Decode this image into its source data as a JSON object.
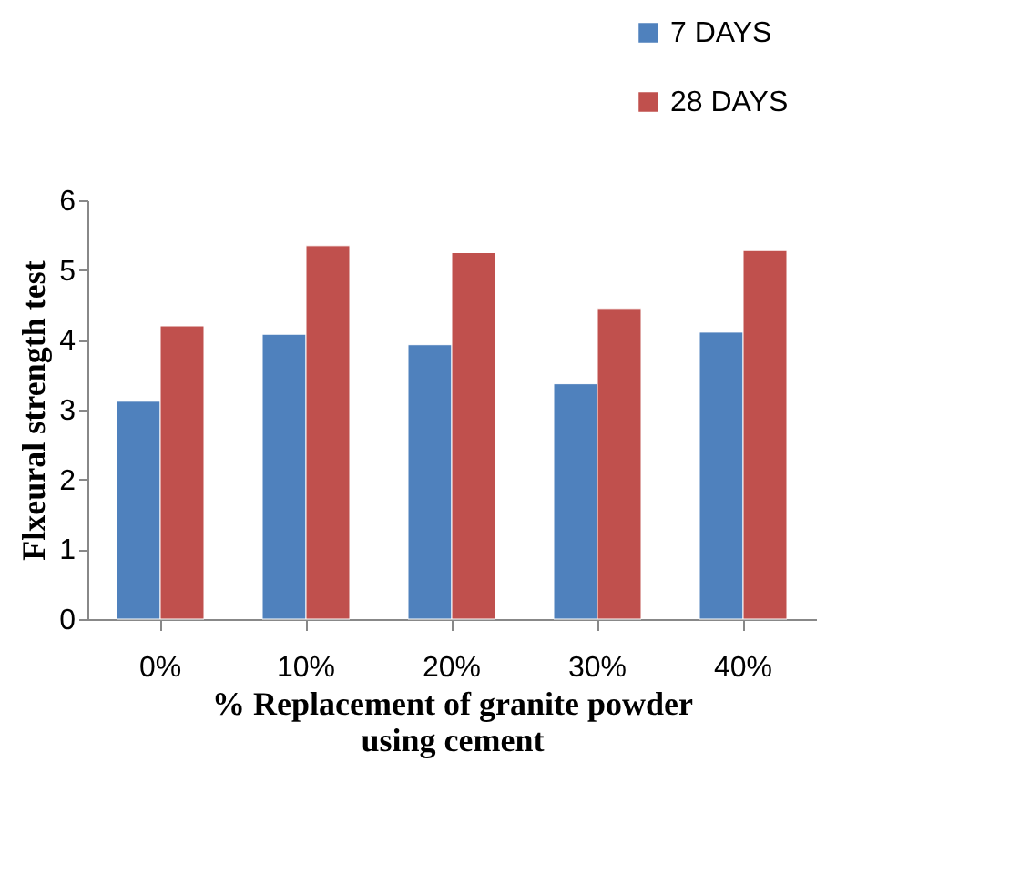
{
  "chart_data": {
    "type": "bar",
    "xlabel": "% Replacement of granite powder using cement",
    "ylabel": "Flxeural strength test",
    "categories": [
      "0%",
      "10%",
      "20%",
      "30%",
      "40%"
    ],
    "series": [
      {
        "name": "7 DAYS",
        "color": "#4f81bd",
        "values": [
          3.12,
          4.08,
          3.93,
          3.37,
          4.11
        ]
      },
      {
        "name": "28 DAYS",
        "color": "#c0504d",
        "values": [
          4.2,
          5.35,
          5.25,
          4.45,
          5.28
        ]
      }
    ],
    "ylim": [
      0,
      6
    ],
    "yticks": [
      0,
      1,
      2,
      3,
      4,
      5,
      6
    ],
    "grid": false,
    "legend": "top right"
  }
}
